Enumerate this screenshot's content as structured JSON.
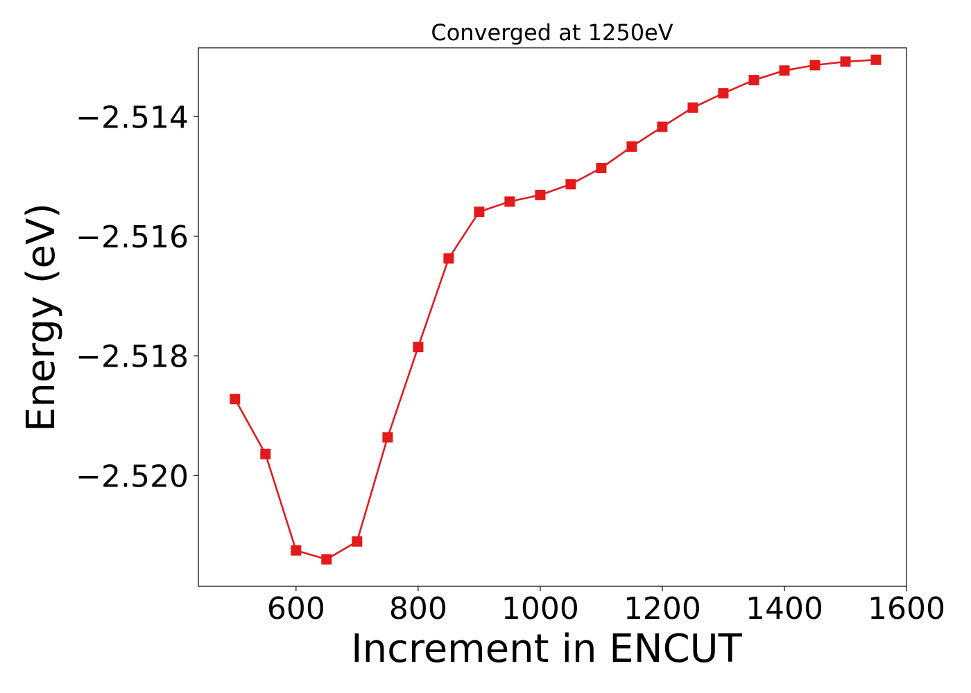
{
  "chart_data": {
    "type": "line",
    "title": "Converged at 1250eV",
    "xlabel": "Increment in ENCUT",
    "ylabel": "Energy (eV)",
    "xlim": [
      440,
      1600
    ],
    "ylim": [
      -2.52185,
      -2.51285
    ],
    "xticks": [
      600,
      800,
      1000,
      1200,
      1400,
      1600
    ],
    "xtick_labels": [
      "600",
      "800",
      "1000",
      "1200",
      "1400",
      "1600"
    ],
    "yticks": [
      -2.514,
      -2.516,
      -2.518,
      -2.52
    ],
    "ytick_labels": [
      "−2.514",
      "−2.516",
      "−2.518",
      "−2.520"
    ],
    "grid": false,
    "legend": "none",
    "series": [
      {
        "color": "#e31a1c",
        "marker": "square",
        "x": [
          500,
          550,
          600,
          650,
          700,
          750,
          800,
          850,
          900,
          950,
          1000,
          1050,
          1100,
          1150,
          1200,
          1250,
          1300,
          1350,
          1400,
          1450,
          1500,
          1550
        ],
        "y": [
          -2.51872,
          -2.51964,
          -2.52125,
          -2.5214,
          -2.5211,
          -2.51936,
          -2.51785,
          -2.51637,
          -2.51559,
          -2.51542,
          -2.51531,
          -2.51513,
          -2.51486,
          -2.5145,
          -2.51417,
          -2.51385,
          -2.51361,
          -2.51339,
          -2.51323,
          -2.51314,
          -2.51308,
          -2.51305
        ]
      }
    ]
  }
}
